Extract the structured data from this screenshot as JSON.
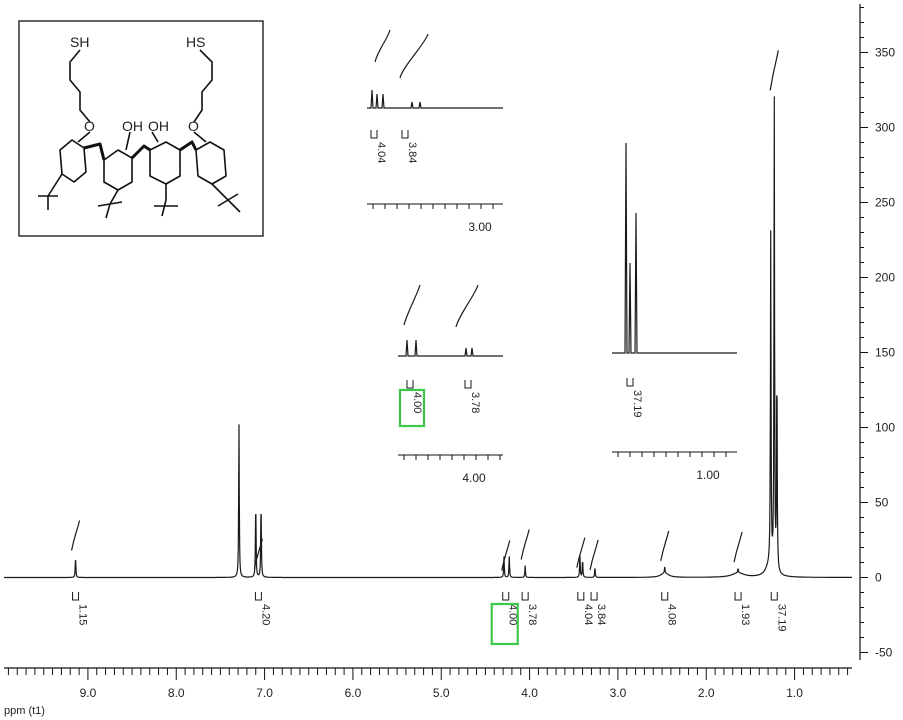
{
  "chart_data": {
    "type": "line",
    "title": "",
    "xlabel": "ppm (t1)",
    "ylabel": "",
    "x_reversed": true,
    "xlim": [
      9.95,
      0.35
    ],
    "ylim": [
      -55,
      385
    ],
    "x_ticks": [
      "9.0",
      "8.0",
      "7.0",
      "6.0",
      "5.0",
      "4.0",
      "3.0",
      "2.0",
      "1.0"
    ],
    "y_ticks": [
      "350",
      "300",
      "250",
      "200",
      "150",
      "100",
      "50",
      "0",
      "-50"
    ],
    "grid": false,
    "peaks": [
      {
        "ppm": 9.14,
        "height": 14
      },
      {
        "ppm": 7.29,
        "height": 102
      },
      {
        "ppm": 7.1,
        "height": 52
      },
      {
        "ppm": 7.04,
        "height": 52
      },
      {
        "ppm": 4.29,
        "height": 14
      },
      {
        "ppm": 4.23,
        "height": 14
      },
      {
        "ppm": 4.05,
        "height": 8
      },
      {
        "ppm": 3.43,
        "height": 15
      },
      {
        "ppm": 3.4,
        "height": 12
      },
      {
        "ppm": 3.26,
        "height": 7
      },
      {
        "ppm": 2.47,
        "height": 4
      },
      {
        "ppm": 1.64,
        "height": 3
      },
      {
        "ppm": 1.27,
        "height": 220
      },
      {
        "ppm": 1.23,
        "height": 312
      },
      {
        "ppm": 1.2,
        "height": 140
      }
    ],
    "integrals": [
      {
        "ppm": 9.14,
        "label": "1.15",
        "boxed": false
      },
      {
        "ppm": 7.07,
        "label": "4.20",
        "boxed": false
      },
      {
        "ppm": 4.27,
        "label": "4.00",
        "boxed": true
      },
      {
        "ppm": 4.05,
        "label": "3.78",
        "boxed": false
      },
      {
        "ppm": 3.42,
        "label": "4.04",
        "boxed": false
      },
      {
        "ppm": 3.27,
        "label": "3.84",
        "boxed": false
      },
      {
        "ppm": 2.47,
        "label": "4.08",
        "boxed": false
      },
      {
        "ppm": 1.64,
        "label": "1.93",
        "boxed": false
      },
      {
        "ppm": 1.23,
        "label": "37.19",
        "boxed": false
      }
    ],
    "insets": [
      {
        "tick_label": "3.00",
        "integrals": [
          "4.04",
          "3.84"
        ]
      },
      {
        "tick_label": "4.00",
        "integrals": [
          "4.00",
          "3.78"
        ],
        "boxed": "4.00"
      },
      {
        "tick_label": "1.00",
        "integrals": [
          "37.19"
        ]
      }
    ]
  },
  "structure": {
    "labels": [
      "SH",
      "HS",
      "O",
      "OH",
      "OH",
      "O"
    ]
  },
  "colors": {
    "trace": "#1a1a1a",
    "highlight": "#3ec84a",
    "background": "#ffffff"
  }
}
